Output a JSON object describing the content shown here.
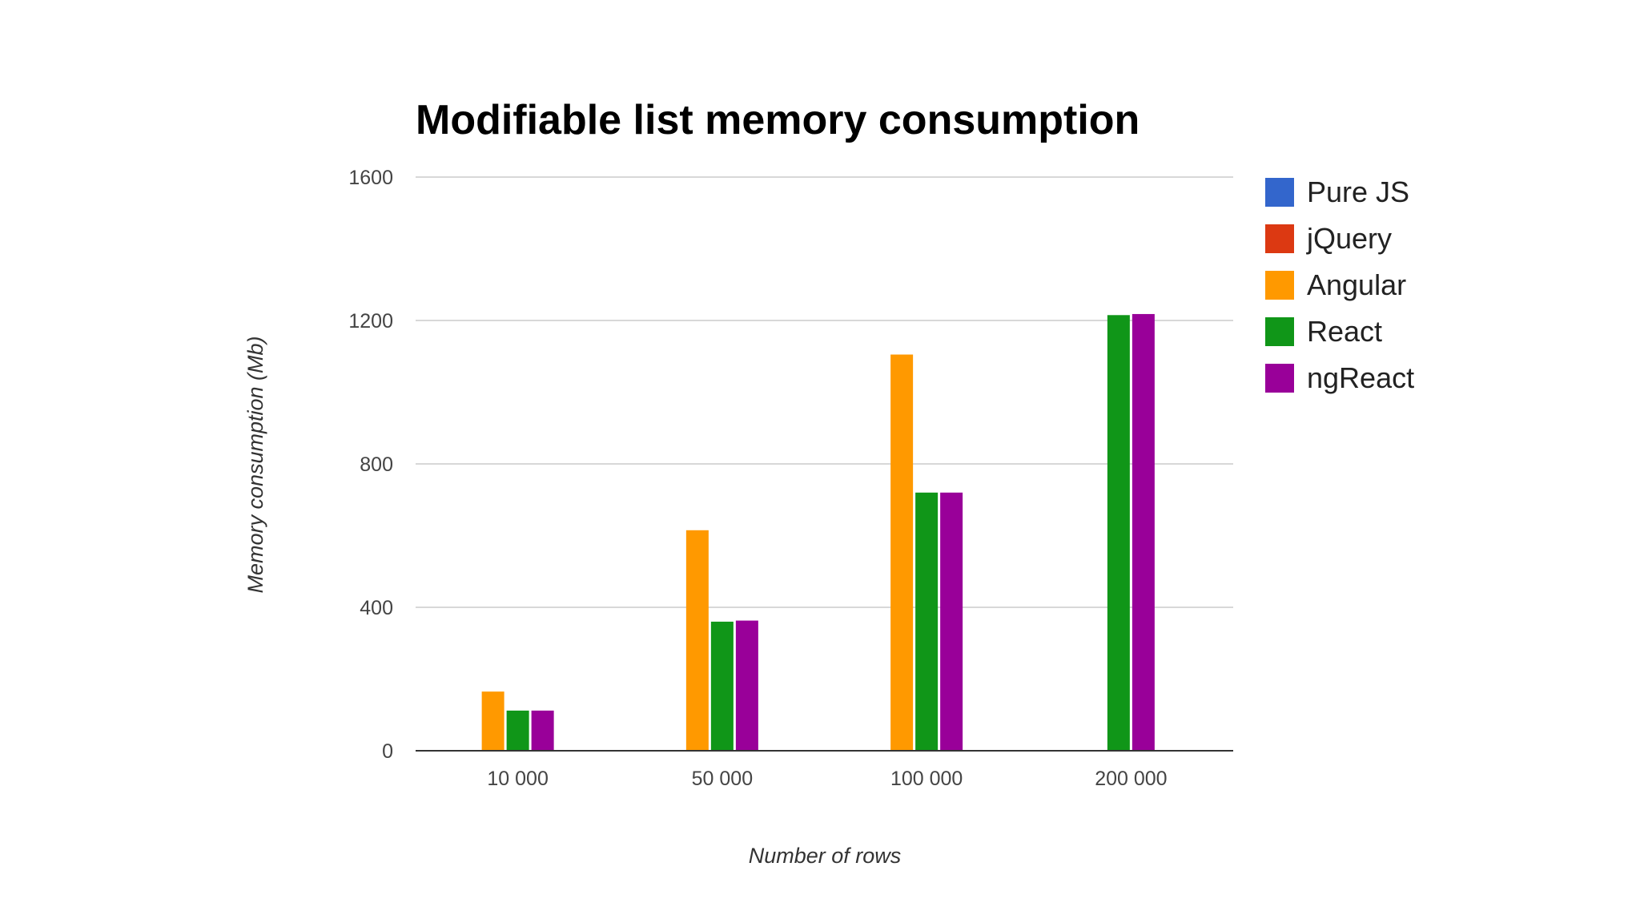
{
  "chart_data": {
    "type": "bar",
    "title": "Modifiable list memory consumption",
    "xlabel": "Number of rows",
    "ylabel": "Memory consumption (Mb)",
    "categories": [
      "10 000",
      "50 000",
      "100 000",
      "200 000"
    ],
    "y_ticks": [
      "0",
      "400",
      "800",
      "1200",
      "1600"
    ],
    "ylim": [
      0,
      1600
    ],
    "grid": true,
    "legend_position": "right",
    "series": [
      {
        "name": "Pure JS",
        "color": "#3366cc",
        "values": [
          null,
          null,
          null,
          null
        ]
      },
      {
        "name": "jQuery",
        "color": "#dc3912",
        "values": [
          null,
          null,
          null,
          null
        ]
      },
      {
        "name": "Angular",
        "color": "#ff9900",
        "values": [
          165,
          615,
          1105,
          null
        ]
      },
      {
        "name": "React",
        "color": "#109618",
        "values": [
          112,
          360,
          720,
          1215
        ]
      },
      {
        "name": "ngReact",
        "color": "#990099",
        "values": [
          112,
          363,
          720,
          1218
        ]
      }
    ]
  }
}
